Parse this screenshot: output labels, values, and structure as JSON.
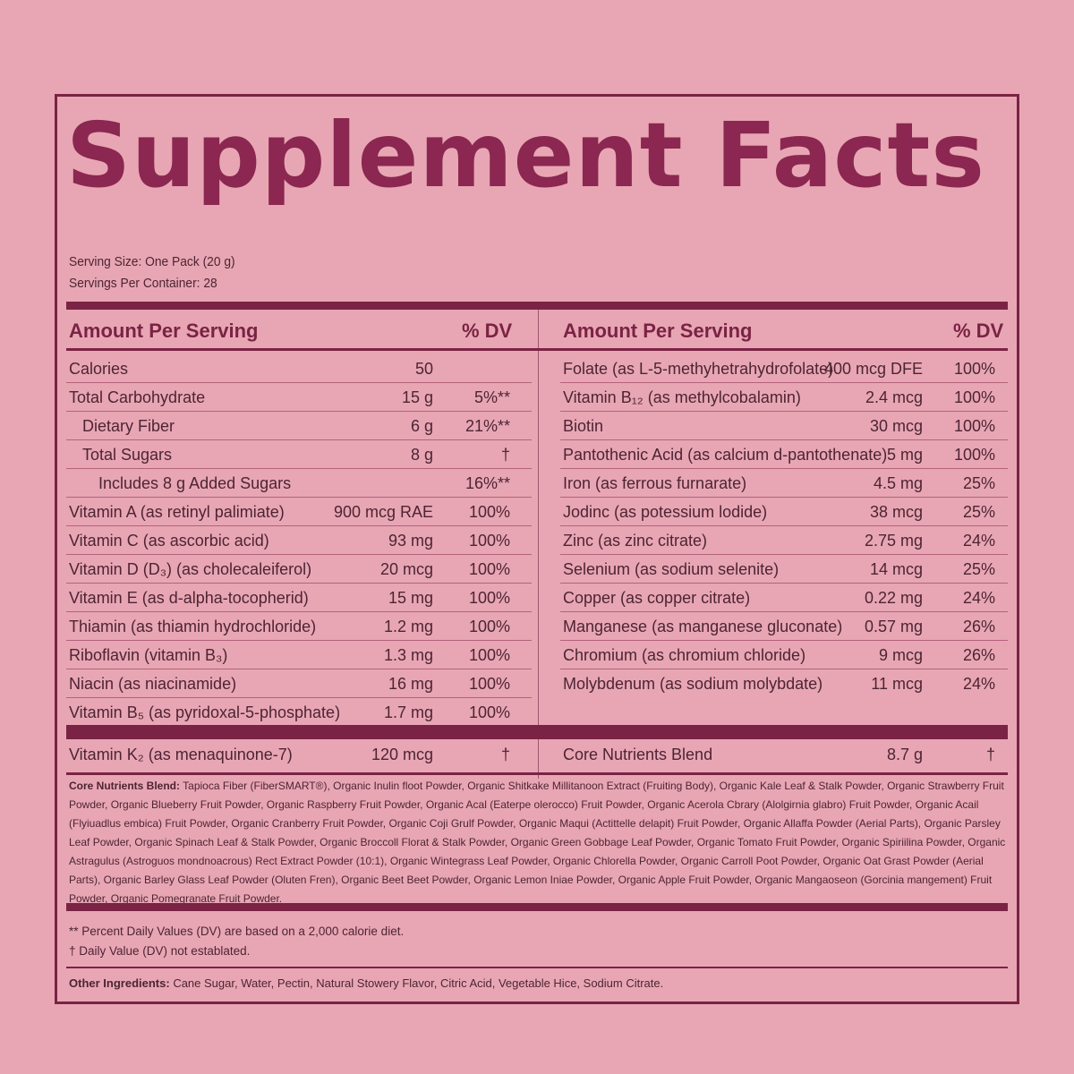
{
  "title": "Supplement Facts",
  "serving_size": "Serving Size: One Pack (20 g)",
  "servings_per_container": "Servings Per Container: 28",
  "left_header": {
    "amount": "Amount Per Serving",
    "dv": "% DV"
  },
  "right_header": {
    "amount": "Amount Per Serving",
    "dv": "% DV"
  },
  "left_rows": [
    {
      "name": "Calories",
      "amount": "50",
      "dv": "",
      "indent": 0
    },
    {
      "name": "Total Carbohydrate",
      "amount": "15 g",
      "dv": "5%**",
      "indent": 0
    },
    {
      "name": "Dietary Fiber",
      "amount": "6 g",
      "dv": "21%**",
      "indent": 1
    },
    {
      "name": "Total Sugars",
      "amount": "8 g",
      "dv": "†",
      "indent": 1
    },
    {
      "name": "Includes 8 g Added Sugars",
      "amount": "",
      "dv": "16%**",
      "indent": 2
    },
    {
      "name": "Vitamin A (as retinyl palimiate)",
      "amount": "900 mcg RAE",
      "dv": "100%",
      "indent": 0
    },
    {
      "name": "Vitamin C (as ascorbic acid)",
      "amount": "93 mg",
      "dv": "100%",
      "indent": 0
    },
    {
      "name": "Vitamin D (D₃) (as cholecaleiferol)",
      "amount": "20 mcg",
      "dv": "100%",
      "indent": 0
    },
    {
      "name": "Vitamin E (as d-alpha-tocopherid)",
      "amount": "15 mg",
      "dv": "100%",
      "indent": 0
    },
    {
      "name": "Thiamin (as thiamin hydrochloride)",
      "amount": "1.2 mg",
      "dv": "100%",
      "indent": 0
    },
    {
      "name": "Riboflavin (vitamin B₃)",
      "amount": "1.3 mg",
      "dv": "100%",
      "indent": 0
    },
    {
      "name": "Niacin (as niacinamide)",
      "amount": "16 mg",
      "dv": "100%",
      "indent": 0
    },
    {
      "name": "Vitamin B₅ (as pyridoxal-5-phosphate)",
      "amount": "1.7 mg",
      "dv": "100%",
      "indent": 0
    }
  ],
  "right_rows": [
    {
      "name": "Folate (as L-5-methyhetrahydrofolate)",
      "amount": "400 mcg DFE",
      "dv": "100%"
    },
    {
      "name": "Vitamin B₁₂ (as methylcobalamin)",
      "amount": "2.4 mcg",
      "dv": "100%"
    },
    {
      "name": "Biotin",
      "amount": "30 mcg",
      "dv": "100%"
    },
    {
      "name": "Pantothenic Acid (as calcium d-pantothenate)",
      "amount": "5 mg",
      "dv": "100%"
    },
    {
      "name": "Iron (as ferrous furnarate)",
      "amount": "4.5 mg",
      "dv": "25%"
    },
    {
      "name": "Jodinc (as potessium lodide)",
      "amount": "38 mcg",
      "dv": "25%"
    },
    {
      "name": "Zinc (as zinc citrate)",
      "amount": "2.75 mg",
      "dv": "24%"
    },
    {
      "name": "Selenium (as sodium selenite)",
      "amount": "14 mcg",
      "dv": "25%"
    },
    {
      "name": "Copper (as copper citrate)",
      "amount": "0.22 mg",
      "dv": "24%"
    },
    {
      "name": "Manganese (as manganese gluconate)",
      "amount": "0.57 mg",
      "dv": "26%"
    },
    {
      "name": "Chromium (as chromium chloride)",
      "amount": "9 mcg",
      "dv": "26%"
    },
    {
      "name": "Molybdenum (as sodium molybdate)",
      "amount": "11 mcg",
      "dv": "24%"
    }
  ],
  "left_bottom_row": {
    "name": "Vitamin K₂ (as menaquinone-7)",
    "amount": "120 mcg",
    "dv": "†"
  },
  "right_bottom_row": {
    "name": "Core Nutrients Blend",
    "amount": "8.7 g",
    "dv": "†"
  },
  "blend_label": "Core Nutrients Blend:",
  "blend_text": "Tapioca Fiber (FiberSMART®), Organic Inulin floot Powder, Organic Shitkake Millitanoon Extract (Fruiting Body), Organic Kale Leaf & Stalk Powder, Organic Strawberry Fruit Powder, Organic Blueberry Fruit Powder, Organic Raspberry Fruit Powder, Organic Acal (Eaterpe olerocco) Fruit Powder, Organic Acerola Cbrary (Alolgirnia glabro) Fruit Powder, Organic Acail (Flyiuadlus embica) Fruit Powder, Organic Cranberry Fruit Powder, Organic Coji Grulf Powder, Organic Maqui (Actittelle delapit) Fruit Powder, Organic Allaffa Powder (Aerial Parts), Organic Parsley Leaf Powder, Organic Spinach Leaf & Stalk Powder, Organic Broccoll Florat & Stalk Powder, Organic Green Gobbage Leaf Powder, Organic Tomato Fruit Powder, Organic Spiriilina Powder, Organic Astragulus (Astroguos mondnoacrous) Rect Extract Powder (10:1), Organic Wintegrass Leaf Powder, Organic Chlorella Powder, Organic Carroll Poot Powder, Organic Oat Grast Powder (Aerial Parts), Organic Barley Glass Leaf Powder (Oluten Fren), Organic Beet Beet Powder, Organic Lemon Iniae Powder, Organic Apple Fruit Powder, Organic Mangaoseon (Gorcinia mangement) Fruit Powder, Organic Pomegranate Fruit Powder.",
  "footnote_dv": "** Percent Daily Values (DV) are based on a 2,000 calorie diet.",
  "footnote_dagger": "† Daily Value (DV) not establated.",
  "other_label": "Other Ingredients:",
  "other_text": "Cane Sugar, Water, Pectin, Natural Stowery Flavor, Citric Acid, Vegetable Hice, Sodium Citrate.",
  "colors": {
    "background": "#e8a6b4",
    "accent": "#7a2344",
    "text": "#4d2433"
  }
}
